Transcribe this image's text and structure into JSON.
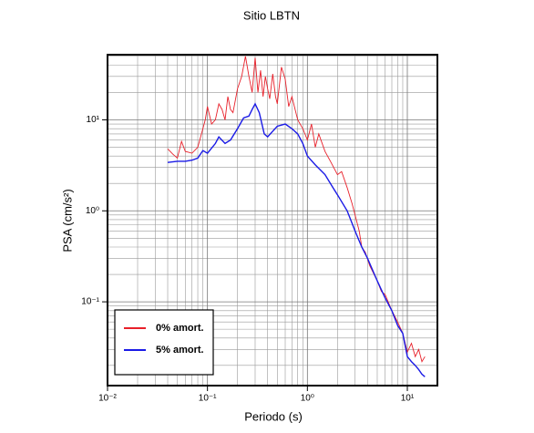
{
  "chart_data": {
    "type": "line",
    "title": "Sitio LBTN",
    "x_label": "Periodo (s)",
    "y_label": "PSA (cm/s²)",
    "log_x": true,
    "log_y": true,
    "grid": true,
    "legend_position": "lower-left",
    "xlim": [
      0.01,
      20
    ],
    "ylim": [
      0.012,
      52
    ],
    "xticks": [
      {
        "value": 0.01,
        "label": "10⁻²"
      },
      {
        "value": 0.1,
        "label": "10⁻¹"
      },
      {
        "value": 1,
        "label": "10⁰"
      },
      {
        "value": 10,
        "label": "10¹"
      }
    ],
    "yticks": [
      {
        "value": 0.1,
        "label": "10⁻¹"
      },
      {
        "value": 1,
        "label": "10⁰"
      },
      {
        "value": 10,
        "label": "10¹"
      }
    ],
    "series": [
      {
        "name": "0% amort.",
        "color": "#e8202a",
        "x": [
          0.04,
          0.045,
          0.05,
          0.055,
          0.06,
          0.07,
          0.08,
          0.09,
          0.095,
          0.1,
          0.11,
          0.12,
          0.13,
          0.14,
          0.15,
          0.16,
          0.17,
          0.18,
          0.2,
          0.22,
          0.24,
          0.26,
          0.28,
          0.3,
          0.32,
          0.34,
          0.36,
          0.38,
          0.4,
          0.42,
          0.45,
          0.48,
          0.5,
          0.55,
          0.6,
          0.65,
          0.7,
          0.8,
          0.9,
          1.0,
          1.1,
          1.2,
          1.3,
          1.5,
          1.7,
          2.0,
          2.2,
          2.5,
          2.8,
          3.0,
          3.3,
          3.5,
          3.8,
          4.2,
          5,
          5.5,
          6,
          7,
          8,
          9,
          10,
          11,
          12,
          13,
          14,
          15
        ],
        "values": [
          4.8,
          4.2,
          3.8,
          5.8,
          4.5,
          4.3,
          5,
          8,
          10,
          14,
          9,
          10,
          15,
          13,
          10,
          18,
          13,
          12,
          22,
          30,
          50,
          30,
          20,
          48,
          20,
          35,
          18,
          30,
          22,
          17,
          32,
          18,
          15,
          38,
          28,
          14,
          18,
          10,
          8,
          6,
          9,
          5,
          7,
          4.5,
          3.5,
          2.5,
          2.7,
          1.8,
          1.2,
          0.9,
          0.6,
          0.4,
          0.35,
          0.25,
          0.17,
          0.13,
          0.12,
          0.08,
          0.06,
          0.045,
          0.028,
          0.035,
          0.025,
          0.03,
          0.022,
          0.025
        ]
      },
      {
        "name": "5% amort.",
        "color": "#1a1ae6",
        "x": [
          0.04,
          0.05,
          0.06,
          0.07,
          0.08,
          0.09,
          0.1,
          0.12,
          0.13,
          0.15,
          0.17,
          0.2,
          0.23,
          0.26,
          0.28,
          0.3,
          0.33,
          0.37,
          0.4,
          0.45,
          0.5,
          0.6,
          0.7,
          0.8,
          0.9,
          1.0,
          1.2,
          1.5,
          1.8,
          2.0,
          2.5,
          3,
          3.5,
          4,
          5,
          6,
          7,
          8,
          9,
          10,
          11,
          12,
          13,
          14,
          15
        ],
        "values": [
          3.4,
          3.5,
          3.5,
          3.6,
          3.8,
          4.6,
          4.3,
          5.5,
          6.5,
          5.5,
          6,
          8,
          10.5,
          11,
          13,
          15,
          12,
          7,
          6.5,
          7.5,
          8.5,
          9,
          8,
          7,
          5.5,
          4,
          3.2,
          2.5,
          1.8,
          1.5,
          1.0,
          0.6,
          0.4,
          0.3,
          0.17,
          0.11,
          0.08,
          0.055,
          0.045,
          0.025,
          0.022,
          0.02,
          0.018,
          0.016,
          0.015
        ]
      }
    ]
  }
}
